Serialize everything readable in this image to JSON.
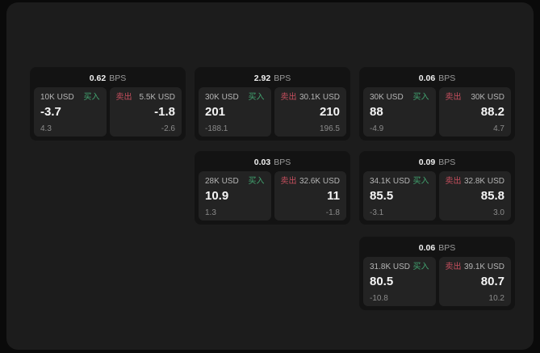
{
  "labels": {
    "buy": "买入",
    "sell": "卖出",
    "bps_unit": "BPS"
  },
  "colors": {
    "background": "#0a0a0a",
    "panel": "#1c1c1c",
    "card": "#131313",
    "tile": "#232323",
    "buy_green": "#42a470",
    "sell_red": "#c64f5e",
    "price_text": "#f5f5f5",
    "muted_text": "#8b8b8b"
  },
  "cards": [
    {
      "bps": "0.62",
      "buy": {
        "amount": "10K USD",
        "price": "-3.7",
        "delta": "4.3"
      },
      "sell": {
        "amount": "5.5K USD",
        "price": "-1.8",
        "delta": "-2.6"
      }
    },
    {
      "bps": "2.92",
      "buy": {
        "amount": "30K USD",
        "price": "201",
        "delta": "-188.1"
      },
      "sell": {
        "amount": "30.1K USD",
        "price": "210",
        "delta": "196.5"
      }
    },
    {
      "bps": "0.06",
      "buy": {
        "amount": "30K USD",
        "price": "88",
        "delta": "-4.9"
      },
      "sell": {
        "amount": "30K USD",
        "price": "88.2",
        "delta": "4.7"
      }
    },
    {
      "bps": "0.03",
      "buy": {
        "amount": "28K USD",
        "price": "10.9",
        "delta": "1.3"
      },
      "sell": {
        "amount": "32.6K USD",
        "price": "11",
        "delta": "-1.8"
      }
    },
    {
      "bps": "0.09",
      "buy": {
        "amount": "34.1K USD",
        "price": "85.5",
        "delta": "-3.1"
      },
      "sell": {
        "amount": "32.8K USD",
        "price": "85.8",
        "delta": "3.0"
      }
    },
    {
      "bps": "0.06",
      "buy": {
        "amount": "31.8K USD",
        "price": "80.5",
        "delta": "-10.8"
      },
      "sell": {
        "amount": "39.1K USD",
        "price": "80.7",
        "delta": "10.2"
      }
    }
  ]
}
